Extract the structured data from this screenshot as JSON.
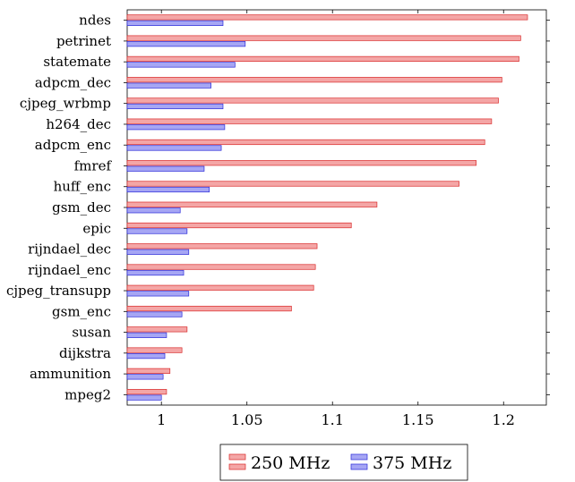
{
  "chart_data": {
    "type": "bar",
    "orientation": "horizontal",
    "title": "",
    "xlabel": "",
    "ylabel": "",
    "xlim": [
      0.98,
      1.225
    ],
    "x_ticks": [
      1,
      1.05,
      1.1,
      1.15,
      1.2
    ],
    "x_tick_labels": [
      "1",
      "1.05",
      "1.1",
      "1.15",
      "1.2"
    ],
    "grid": false,
    "legend_position": "bottom",
    "categories": [
      "ndes",
      "petrinet",
      "statemate",
      "adpcm_dec",
      "cjpeg_wrbmp",
      "h264_dec",
      "adpcm_enc",
      "fmref",
      "huff_enc",
      "gsm_dec",
      "epic",
      "rijndael_dec",
      "rijndael_enc",
      "cjpeg_transupp",
      "gsm_enc",
      "susan",
      "dijkstra",
      "ammunition",
      "mpeg2"
    ],
    "series": [
      {
        "name": "250 MHz",
        "color": "#f4a6a6",
        "stroke": "#d92b2b",
        "values": [
          1.214,
          1.21,
          1.209,
          1.199,
          1.197,
          1.193,
          1.189,
          1.184,
          1.174,
          1.126,
          1.111,
          1.091,
          1.09,
          1.089,
          1.076,
          1.015,
          1.012,
          1.005,
          1.003
        ]
      },
      {
        "name": "375 MHz",
        "color": "#a6a6f4",
        "stroke": "#2b2bd9",
        "values": [
          1.036,
          1.049,
          1.043,
          1.029,
          1.036,
          1.037,
          1.035,
          1.025,
          1.028,
          1.011,
          1.015,
          1.016,
          1.013,
          1.016,
          1.012,
          1.003,
          1.002,
          1.001,
          1.0
        ]
      }
    ]
  }
}
